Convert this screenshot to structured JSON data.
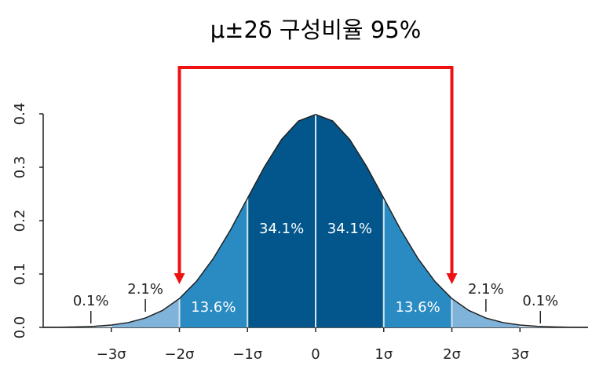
{
  "chart_data": {
    "type": "area",
    "title": "μ±2δ 구성비율 95%",
    "x": [
      -4,
      -3.75,
      -3.5,
      -3.25,
      -3,
      -2.75,
      -2.5,
      -2.25,
      -2,
      -1.75,
      -1.5,
      -1.25,
      -1,
      -0.75,
      -0.5,
      -0.25,
      0,
      0.25,
      0.5,
      0.75,
      1,
      1.25,
      1.5,
      1.75,
      2,
      2.25,
      2.5,
      2.75,
      3,
      3.25,
      3.5,
      3.75,
      4
    ],
    "values": [
      0.0001,
      0.0004,
      0.0009,
      0.002,
      0.0044,
      0.0091,
      0.0175,
      0.0317,
      0.054,
      0.0863,
      0.1295,
      0.1826,
      0.242,
      0.3011,
      0.3521,
      0.3867,
      0.3989,
      0.3867,
      0.3521,
      0.3011,
      0.242,
      0.1826,
      0.1295,
      0.0863,
      0.054,
      0.0317,
      0.0175,
      0.0091,
      0.0044,
      0.002,
      0.0009,
      0.0004,
      0.0001
    ],
    "xlim": [
      -4,
      4
    ],
    "ylim": [
      0,
      0.4
    ],
    "xticks": [
      {
        "value": -3,
        "label": "−3σ"
      },
      {
        "value": -2,
        "label": "−2σ"
      },
      {
        "value": -1,
        "label": "−1σ"
      },
      0,
      {
        "value": 1,
        "label": "1σ"
      },
      {
        "value": 2,
        "label": "2σ"
      },
      {
        "value": 3,
        "label": "3σ"
      }
    ],
    "yticks": [
      {
        "value": 0,
        "label": "0.0"
      },
      {
        "value": 0.1,
        "label": "0.1"
      },
      {
        "value": 0.2,
        "label": "0.2"
      },
      {
        "value": 0.3,
        "label": "0.3"
      },
      {
        "value": 0.4,
        "label": "0.4"
      }
    ],
    "bands": [
      {
        "from": -4,
        "to": -3,
        "label": "0.1%",
        "color": "#c3dbec"
      },
      {
        "from": -3,
        "to": -2,
        "label": "2.1%",
        "color": "#80b3d9"
      },
      {
        "from": -2,
        "to": -1,
        "label": "13.6%",
        "color": "#2a8bc3"
      },
      {
        "from": -1,
        "to": 0,
        "label": "34.1%",
        "color": "#03568c"
      },
      {
        "from": 0,
        "to": 1,
        "label": "34.1%",
        "color": "#03568c"
      },
      {
        "from": 1,
        "to": 2,
        "label": "13.6%",
        "color": "#2a8bc3"
      },
      {
        "from": 2,
        "to": 3,
        "label": "2.1%",
        "color": "#80b3d9"
      },
      {
        "from": 3,
        "to": 4,
        "label": "0.1%",
        "color": "#c3dbec"
      }
    ],
    "bracket": {
      "from": -2,
      "to": 2,
      "color": "#ee1111"
    }
  }
}
